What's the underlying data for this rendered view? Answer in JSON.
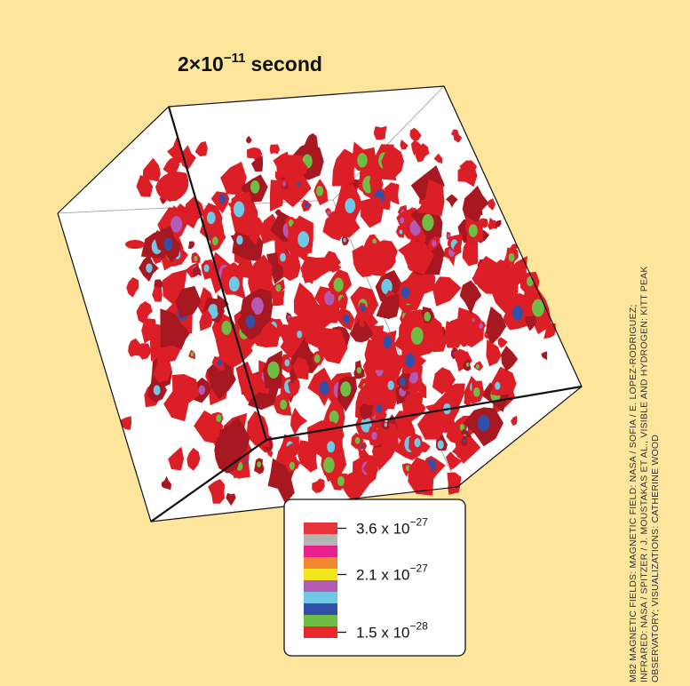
{
  "title": {
    "base": "2×10",
    "exponent": "−11",
    "unit": "second"
  },
  "legend": {
    "colors": [
      "#e8323c",
      "#b4b4b4",
      "#e8208c",
      "#f0872d",
      "#f0e61e",
      "#b45ab4",
      "#6ec8e6",
      "#3250aa",
      "#6ebe46",
      "#e82828"
    ],
    "labels": [
      {
        "base": "3.6 x 10",
        "exponent": "−27"
      },
      {
        "base": "2.1 x 10",
        "exponent": "−27"
      },
      {
        "base": "1.5 x 10",
        "exponent": "−28"
      }
    ]
  },
  "credit": [
    "M82 MAGNETIC FIELDS: MAGNETIC FIELD: NASA / SOFIA / E. LOPEZ-RODRIGUEZ;",
    "INFRARED: NASA / SPITZER / J. MOUSTAKAS ET AL., VISIBLE AND HYDROGEN: KITT PEAK",
    "OBSERVATORY; VISUALIZATIONS: CATHERINE WOOD"
  ]
}
